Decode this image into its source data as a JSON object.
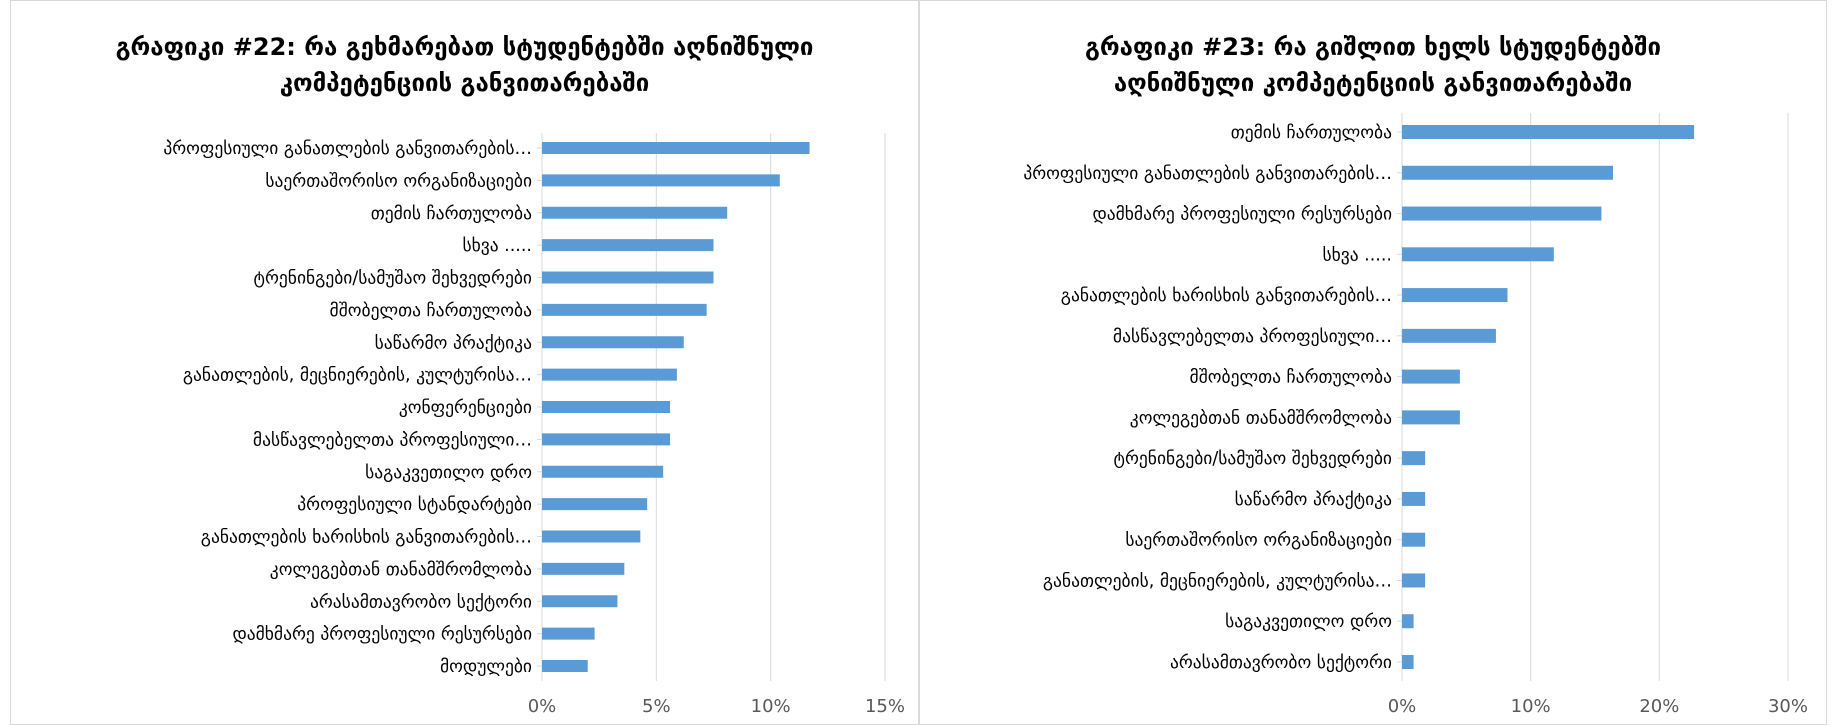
{
  "chart_data": [
    {
      "type": "bar",
      "orientation": "horizontal",
      "title_lines": [
        "გრაფიკი #22: რა გეხმარებათ სტუდენტებში აღნიშნული",
        "კომპეტენციის განვითარებაში"
      ],
      "categories": [
        "პროფესიული განათლების განვითარების…",
        "საერთაშორისო ორგანიზაციები",
        "თემის ჩართულობა",
        "სხვა .....",
        "ტრენინგები/სამუშაო შეხვედრები",
        "მშობელთა ჩართულობა",
        "საწარმო პრაქტიკა",
        "განათლების, მეცნიერების, კულტურისა…",
        "კონფერენციები",
        "მასწავლებელთა პროფესიული…",
        "საგაკვეთილო დრო",
        "პროფესიული სტანდარტები",
        "განათლების ხარისხის განვითარების…",
        "კოლეგებთან თანამშრომლობა",
        "არასამთავრობო სექტორი",
        "დამხმარე პროფესიული რესურსები",
        "მოდულები"
      ],
      "values": [
        11.7,
        10.4,
        8.1,
        7.5,
        7.5,
        7.2,
        6.2,
        5.9,
        5.6,
        5.6,
        5.3,
        4.6,
        4.3,
        3.6,
        3.3,
        2.3,
        2.0
      ],
      "value_unit": "%",
      "xlim": [
        0,
        15
      ],
      "xticks": [
        "0%",
        "5%",
        "10%",
        "15%"
      ],
      "grid": true,
      "bar_color": "#5b9bd5"
    },
    {
      "type": "bar",
      "orientation": "horizontal",
      "title_lines": [
        "გრაფიკი #23: რა გიშლით ხელს სტუდენტებში",
        "აღნიშნული კომპეტენციის განვითარებაში"
      ],
      "categories": [
        "თემის ჩართულობა",
        "პროფესიული განათლების განვითარების…",
        "დამხმარე პროფესიული რესურსები",
        "სხვა .....",
        "განათლების ხარისხის განვითარების…",
        "მასწავლებელთა პროფესიული…",
        "მშობელთა ჩართულობა",
        "კოლეგებთან თანამშრომლობა",
        "ტრენინგები/სამუშაო შეხვედრები",
        "საწარმო პრაქტიკა",
        "საერთაშორისო ორგანიზაციები",
        "განათლების, მეცნიერების, კულტურისა…",
        "საგაკვეთილო დრო",
        "არასამთავრობო სექტორი"
      ],
      "values": [
        22.7,
        16.4,
        15.5,
        11.8,
        8.2,
        7.3,
        4.5,
        4.5,
        1.8,
        1.8,
        1.8,
        1.8,
        0.9,
        0.9
      ],
      "value_unit": "%",
      "xlim": [
        0,
        30
      ],
      "xticks": [
        "0%",
        "10%",
        "20%",
        "30%"
      ],
      "grid": true,
      "bar_color": "#5b9bd5"
    }
  ]
}
